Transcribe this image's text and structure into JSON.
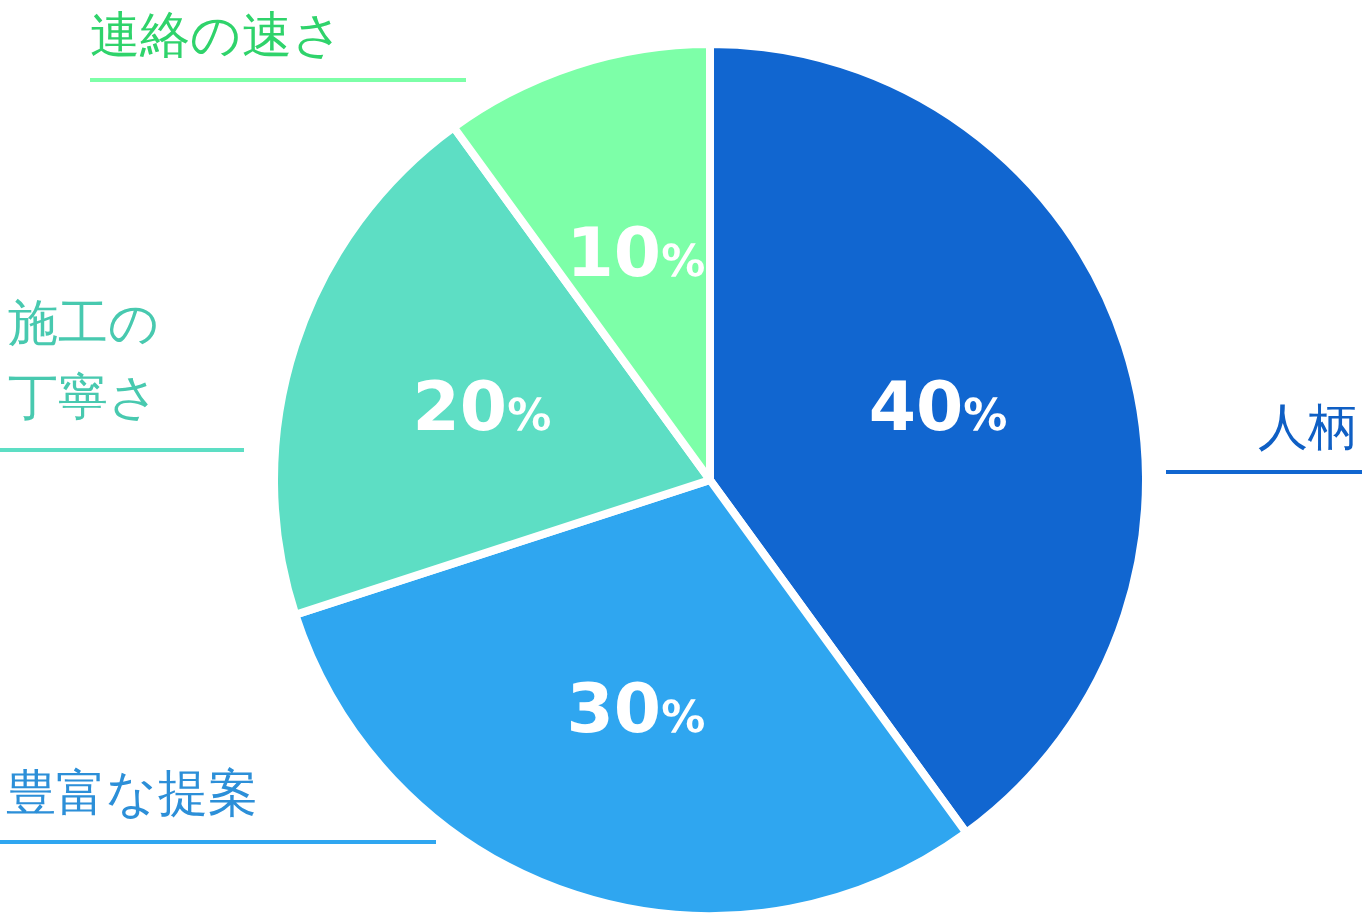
{
  "chart_data": {
    "type": "pie",
    "categories": [
      "人柄",
      "豊富な提案",
      "施工の丁寧さ",
      "連絡の速さ"
    ],
    "values": [
      40,
      30,
      20,
      10
    ],
    "value_labels": [
      "40%",
      "30%",
      "20%",
      "10%"
    ],
    "colors": [
      "#1166d0",
      "#2fa6f0",
      "#5ddec4",
      "#7dffa8"
    ]
  }
}
